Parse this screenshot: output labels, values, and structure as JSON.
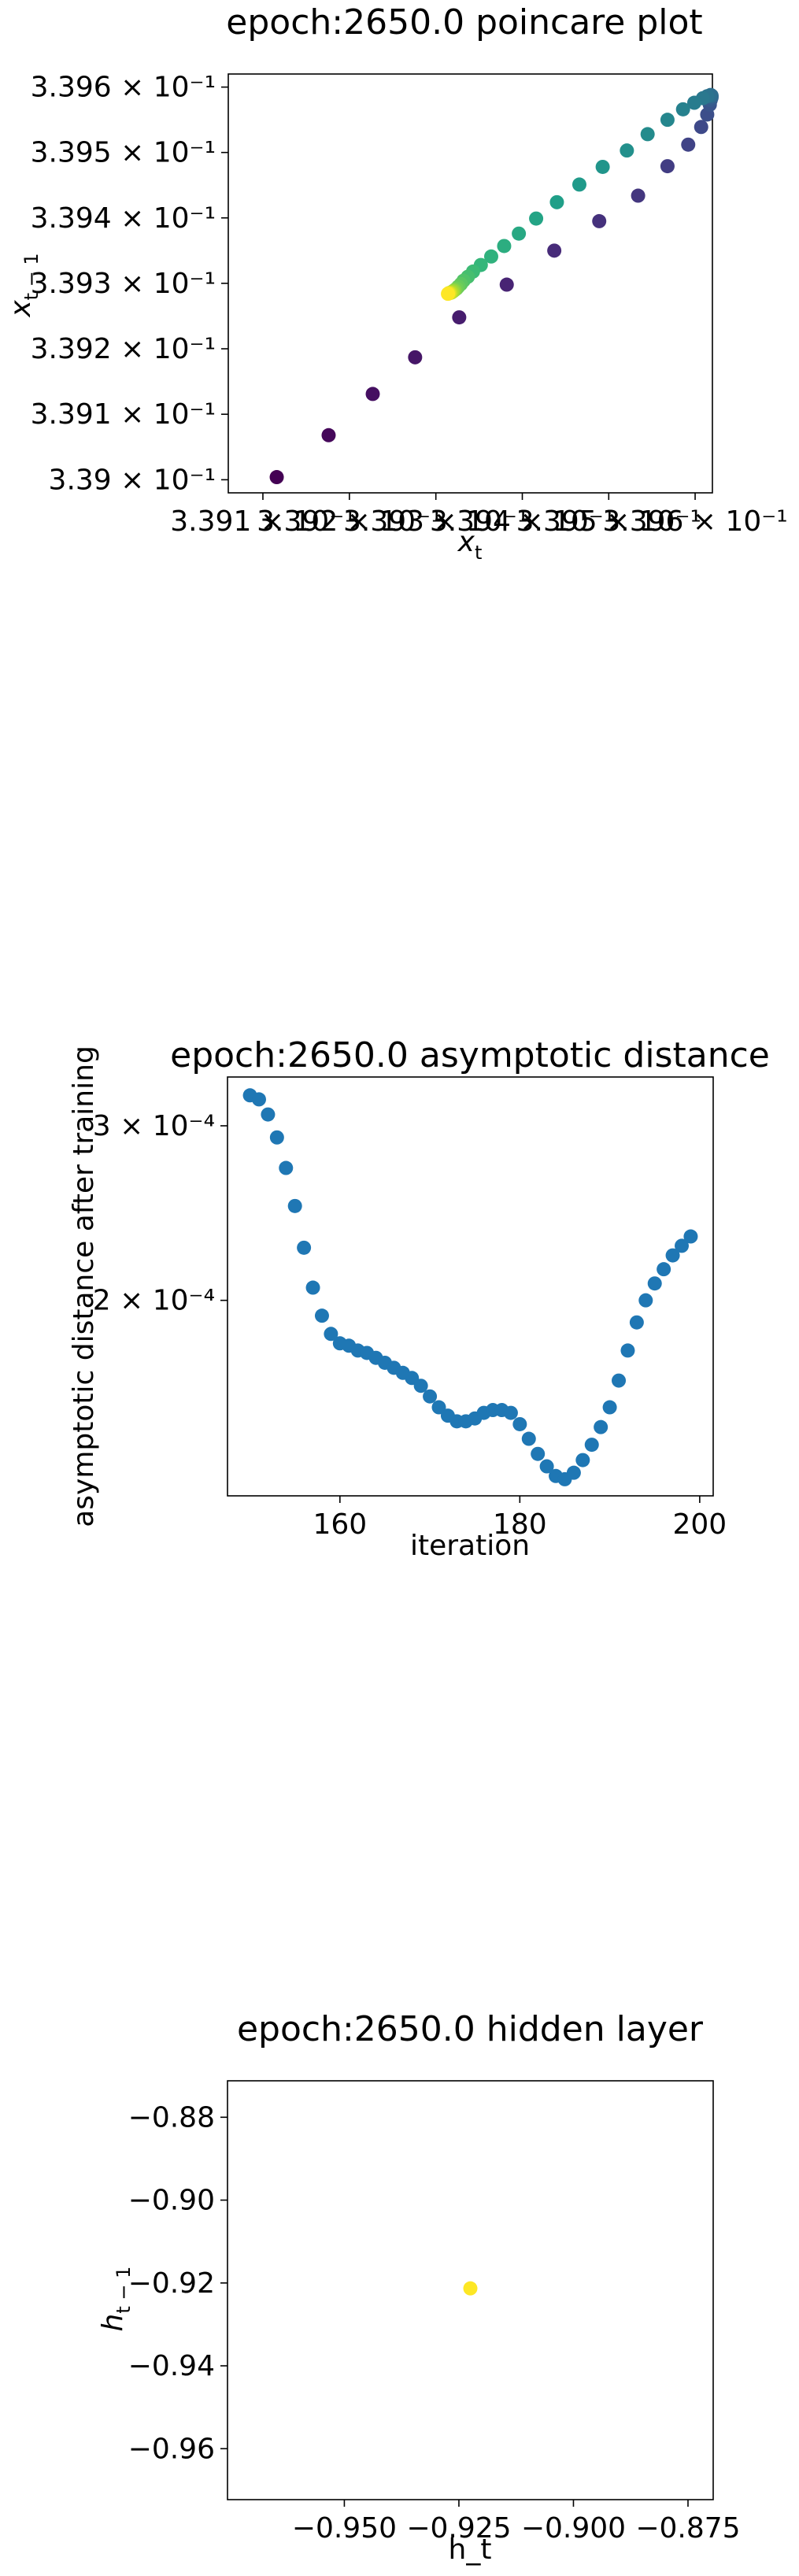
{
  "chart_data": [
    {
      "type": "scatter",
      "title": "epoch:2650.0 poincare plot",
      "xlabel": "x_t",
      "ylabel": "x_{t-1}",
      "xscale": "log",
      "yscale": "log",
      "xlim": [
        0.33906,
        0.33962
      ],
      "ylim": [
        0.33898,
        0.33962
      ],
      "colormap": "viridis",
      "xticks": [
        {
          "value": 0.3391,
          "label": "3.391 × 10⁻¹"
        },
        {
          "value": 0.3392,
          "label": "3.392 × 10⁻¹"
        },
        {
          "value": 0.3393,
          "label": "3.393 × 10⁻¹"
        },
        {
          "value": 0.3394,
          "label": "3.394 × 10⁻¹"
        },
        {
          "value": 0.3395,
          "label": "3.395 × 10⁻¹"
        },
        {
          "value": 0.3396,
          "label": "3.396 × 10⁻¹"
        }
      ],
      "yticks": [
        {
          "value": 0.339,
          "label": "3.39 × 10⁻¹"
        },
        {
          "value": 0.3391,
          "label": "3.391 × 10⁻¹"
        },
        {
          "value": 0.3392,
          "label": "3.392 × 10⁻¹"
        },
        {
          "value": 0.3393,
          "label": "3.393 × 10⁻¹"
        },
        {
          "value": 0.3394,
          "label": "3.394 × 10⁻¹"
        },
        {
          "value": 0.3395,
          "label": "3.395 × 10⁻¹"
        },
        {
          "value": 0.3396,
          "label": "3.396 × 10⁻¹"
        }
      ],
      "points": [
        {
          "x": 0.339116,
          "y": 0.339004,
          "c": 0.0
        },
        {
          "x": 0.339176,
          "y": 0.339068,
          "c": 0.02
        },
        {
          "x": 0.339227,
          "y": 0.339131,
          "c": 0.04
        },
        {
          "x": 0.339276,
          "y": 0.339187,
          "c": 0.06
        },
        {
          "x": 0.339327,
          "y": 0.339248,
          "c": 0.08
        },
        {
          "x": 0.339382,
          "y": 0.339298,
          "c": 0.1
        },
        {
          "x": 0.339437,
          "y": 0.33935,
          "c": 0.12
        },
        {
          "x": 0.339489,
          "y": 0.339395,
          "c": 0.14
        },
        {
          "x": 0.339534,
          "y": 0.339434,
          "c": 0.16
        },
        {
          "x": 0.339568,
          "y": 0.339479,
          "c": 0.18
        },
        {
          "x": 0.339592,
          "y": 0.339512,
          "c": 0.2
        },
        {
          "x": 0.339607,
          "y": 0.339539,
          "c": 0.22
        },
        {
          "x": 0.339614,
          "y": 0.339558,
          "c": 0.24
        },
        {
          "x": 0.339617,
          "y": 0.339573,
          "c": 0.26
        },
        {
          "x": 0.339618,
          "y": 0.33958,
          "c": 0.28
        },
        {
          "x": 0.339619,
          "y": 0.339584,
          "c": 0.3
        },
        {
          "x": 0.339619,
          "y": 0.339586,
          "c": 0.32
        },
        {
          "x": 0.339619,
          "y": 0.339587,
          "c": 0.34
        },
        {
          "x": 0.339618,
          "y": 0.339588,
          "c": 0.36
        },
        {
          "x": 0.339614,
          "y": 0.339586,
          "c": 0.38
        },
        {
          "x": 0.339609,
          "y": 0.339583,
          "c": 0.4
        },
        {
          "x": 0.339599,
          "y": 0.339576,
          "c": 0.42
        },
        {
          "x": 0.339586,
          "y": 0.339566,
          "c": 0.44
        },
        {
          "x": 0.339568,
          "y": 0.33955,
          "c": 0.46
        },
        {
          "x": 0.339545,
          "y": 0.339528,
          "c": 0.48
        },
        {
          "x": 0.339521,
          "y": 0.339503,
          "c": 0.5
        },
        {
          "x": 0.339493,
          "y": 0.339478,
          "c": 0.52
        },
        {
          "x": 0.339466,
          "y": 0.339451,
          "c": 0.54
        },
        {
          "x": 0.33944,
          "y": 0.339424,
          "c": 0.56
        },
        {
          "x": 0.339416,
          "y": 0.339399,
          "c": 0.58
        },
        {
          "x": 0.339396,
          "y": 0.339376,
          "c": 0.6
        },
        {
          "x": 0.339379,
          "y": 0.339357,
          "c": 0.62
        },
        {
          "x": 0.339364,
          "y": 0.339341,
          "c": 0.64
        },
        {
          "x": 0.339352,
          "y": 0.339328,
          "c": 0.66
        },
        {
          "x": 0.339343,
          "y": 0.339318,
          "c": 0.68
        },
        {
          "x": 0.339337,
          "y": 0.33931,
          "c": 0.7
        },
        {
          "x": 0.339332,
          "y": 0.339304,
          "c": 0.72
        },
        {
          "x": 0.339329,
          "y": 0.339299,
          "c": 0.74
        },
        {
          "x": 0.339326,
          "y": 0.339295,
          "c": 0.76
        },
        {
          "x": 0.339324,
          "y": 0.339292,
          "c": 0.78
        },
        {
          "x": 0.339322,
          "y": 0.33929,
          "c": 0.8
        },
        {
          "x": 0.339321,
          "y": 0.339289,
          "c": 0.82
        },
        {
          "x": 0.33932,
          "y": 0.339288,
          "c": 0.84
        },
        {
          "x": 0.339319,
          "y": 0.339287,
          "c": 0.86
        },
        {
          "x": 0.339318,
          "y": 0.339286,
          "c": 0.88
        },
        {
          "x": 0.339317,
          "y": 0.339286,
          "c": 0.9
        },
        {
          "x": 0.339316,
          "y": 0.339285,
          "c": 0.93
        },
        {
          "x": 0.339315,
          "y": 0.339285,
          "c": 0.96
        },
        {
          "x": 0.339314,
          "y": 0.339284,
          "c": 1.0
        }
      ]
    },
    {
      "type": "scatter",
      "title": "epoch:2650.0 asymptotic distance",
      "xlabel": "iteration",
      "ylabel": "asymptotic distance after training",
      "yscale": "log",
      "xlim": [
        147.5,
        201.5
      ],
      "ylim": [
        0.000127,
        0.000336
      ],
      "color": "#1f77b4",
      "xticks": [
        {
          "value": 160,
          "label": "160"
        },
        {
          "value": 180,
          "label": "180"
        },
        {
          "value": 200,
          "label": "200"
        }
      ],
      "yticks": [
        {
          "value": 0.0002,
          "label": "2 × 10⁻⁴"
        },
        {
          "value": 0.0003,
          "label": "3 × 10⁻⁴"
        }
      ],
      "x": [
        150,
        151,
        152,
        153,
        154,
        155,
        156,
        157,
        158,
        159,
        160,
        161,
        162,
        163,
        164,
        165,
        166,
        167,
        168,
        169,
        170,
        171,
        172,
        173,
        174,
        175,
        176,
        177,
        178,
        179,
        180,
        181,
        182,
        183,
        184,
        185,
        186,
        187,
        188,
        189,
        190,
        191,
        192,
        193,
        194,
        195,
        196,
        197,
        198,
        199
      ],
      "y": [
        0.000322,
        0.000319,
        0.000308,
        0.000292,
        0.000272,
        0.000249,
        0.000226,
        0.000206,
        0.000193,
        0.000185,
        0.000181,
        0.00018,
        0.000178,
        0.000177,
        0.000175,
        0.000173,
        0.000171,
        0.000169,
        0.000167,
        0.000164,
        0.00016,
        0.000156,
        0.000153,
        0.000151,
        0.000151,
        0.000152,
        0.000154,
        0.000155,
        0.000155,
        0.000154,
        0.00015,
        0.000145,
        0.00014,
        0.000136,
        0.000133,
        0.000132,
        0.000134,
        0.000138,
        0.000143,
        0.000149,
        0.000156,
        0.000166,
        0.000178,
        0.00019,
        0.0002,
        0.000208,
        0.000215,
        0.000222,
        0.000227,
        0.000232
      ]
    },
    {
      "type": "scatter",
      "title": "epoch:2650.0 hidden layer",
      "xlabel": "h_t",
      "ylabel": "h_{t-1}",
      "xlim": [
        -0.9755,
        -0.8695
      ],
      "ylim": [
        -0.9723,
        -0.8712
      ],
      "color": "#fde725",
      "xticks": [
        {
          "value": -0.95,
          "label": "−0.950"
        },
        {
          "value": -0.925,
          "label": "−0.925"
        },
        {
          "value": -0.9,
          "label": "−0.900"
        },
        {
          "value": -0.875,
          "label": "−0.875"
        }
      ],
      "yticks": [
        {
          "value": -0.88,
          "label": "−0.88"
        },
        {
          "value": -0.9,
          "label": "−0.90"
        },
        {
          "value": -0.92,
          "label": "−0.92"
        },
        {
          "value": -0.94,
          "label": "−0.94"
        },
        {
          "value": -0.96,
          "label": "−0.96"
        }
      ],
      "points": [
        {
          "x": -0.9225,
          "y": -0.9213
        }
      ]
    }
  ]
}
